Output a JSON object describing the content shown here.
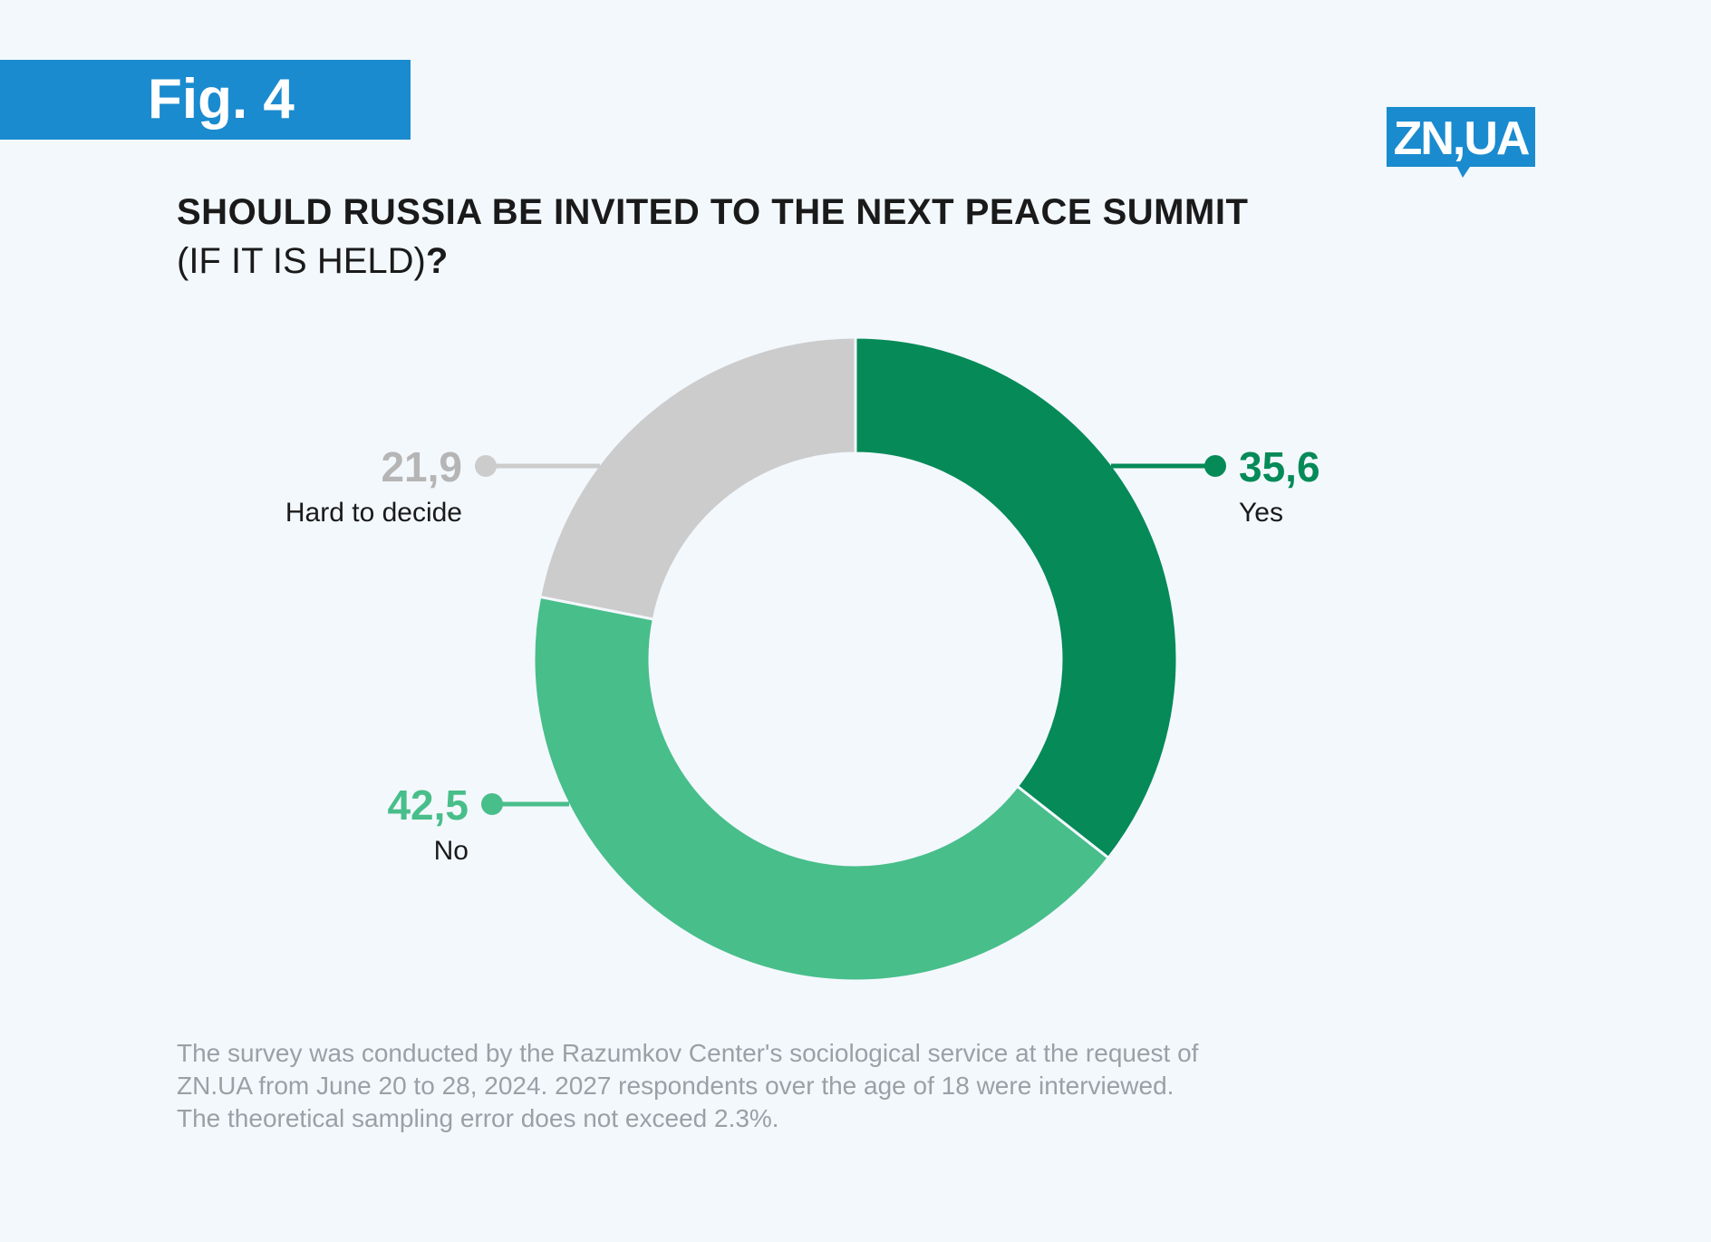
{
  "badge": {
    "label": "Fig. 4"
  },
  "logo": {
    "text": "ZN,UA",
    "color": "#1a8bcf"
  },
  "title": {
    "line1": "SHOULD RUSSIA BE INVITED TO THE NEXT PEACE SUMMIT",
    "line2": "(IF IT IS HELD)",
    "line2_mark": "?"
  },
  "chart_data": {
    "type": "pie",
    "style": "donut",
    "categories": [
      "Yes",
      "No",
      "Hard to decide"
    ],
    "values": [
      35.6,
      42.5,
      21.9
    ],
    "value_labels": [
      "35,6",
      "42,5",
      "21,9"
    ],
    "colors": [
      "#058a58",
      "#48be8a",
      "#cccccc"
    ],
    "label_colors": [
      "#058a58",
      "#48be8a",
      "#b5b5b5"
    ],
    "start_angle_deg": 0,
    "direction": "clockwise"
  },
  "footnote": {
    "lines": [
      "The survey was conducted by the Razumkov Center's sociological service at the request of",
      "ZN.UA from June 20 to 28, 2024. 2027 respondents over the age of 18 were interviewed.",
      "The theoretical sampling error does not exceed 2.3%."
    ]
  }
}
